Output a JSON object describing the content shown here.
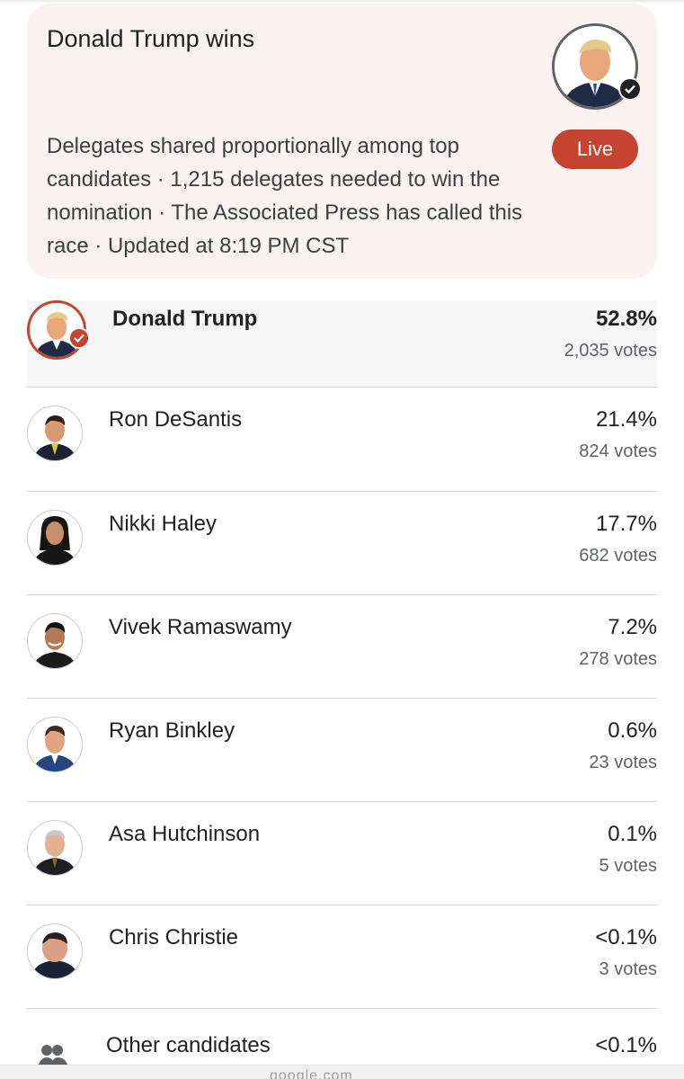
{
  "card": {
    "title": "Donald Trump wins",
    "description": "Delegates shared proportionally among top candidates · 1,215 delegates needed to win the nomination · The Associated Press has called this race · Updated at 8:19 PM CST",
    "live_label": "Live",
    "winner_avatar_icon": "winner-portrait",
    "winner_check_icon": "check-icon",
    "accent_color": "#c5432f",
    "card_background": "#fcf2f1"
  },
  "candidates": [
    {
      "name": "Donald Trump",
      "percent": "52.8%",
      "votes": "2,035 votes",
      "winner": true
    },
    {
      "name": "Ron DeSantis",
      "percent": "21.4%",
      "votes": "824 votes"
    },
    {
      "name": "Nikki Haley",
      "percent": "17.7%",
      "votes": "682 votes"
    },
    {
      "name": "Vivek Ramaswamy",
      "percent": "7.2%",
      "votes": "278 votes"
    },
    {
      "name": "Ryan Binkley",
      "percent": "0.6%",
      "votes": "23 votes"
    },
    {
      "name": "Asa Hutchinson",
      "percent": "0.1%",
      "votes": "5 votes"
    },
    {
      "name": "Chris Christie",
      "percent": "<0.1%",
      "votes": "3 votes"
    }
  ],
  "other": {
    "name": "Other candidates",
    "percent": "<0.1%",
    "icon": "people-icon"
  },
  "footer": {
    "host": "google.com"
  }
}
